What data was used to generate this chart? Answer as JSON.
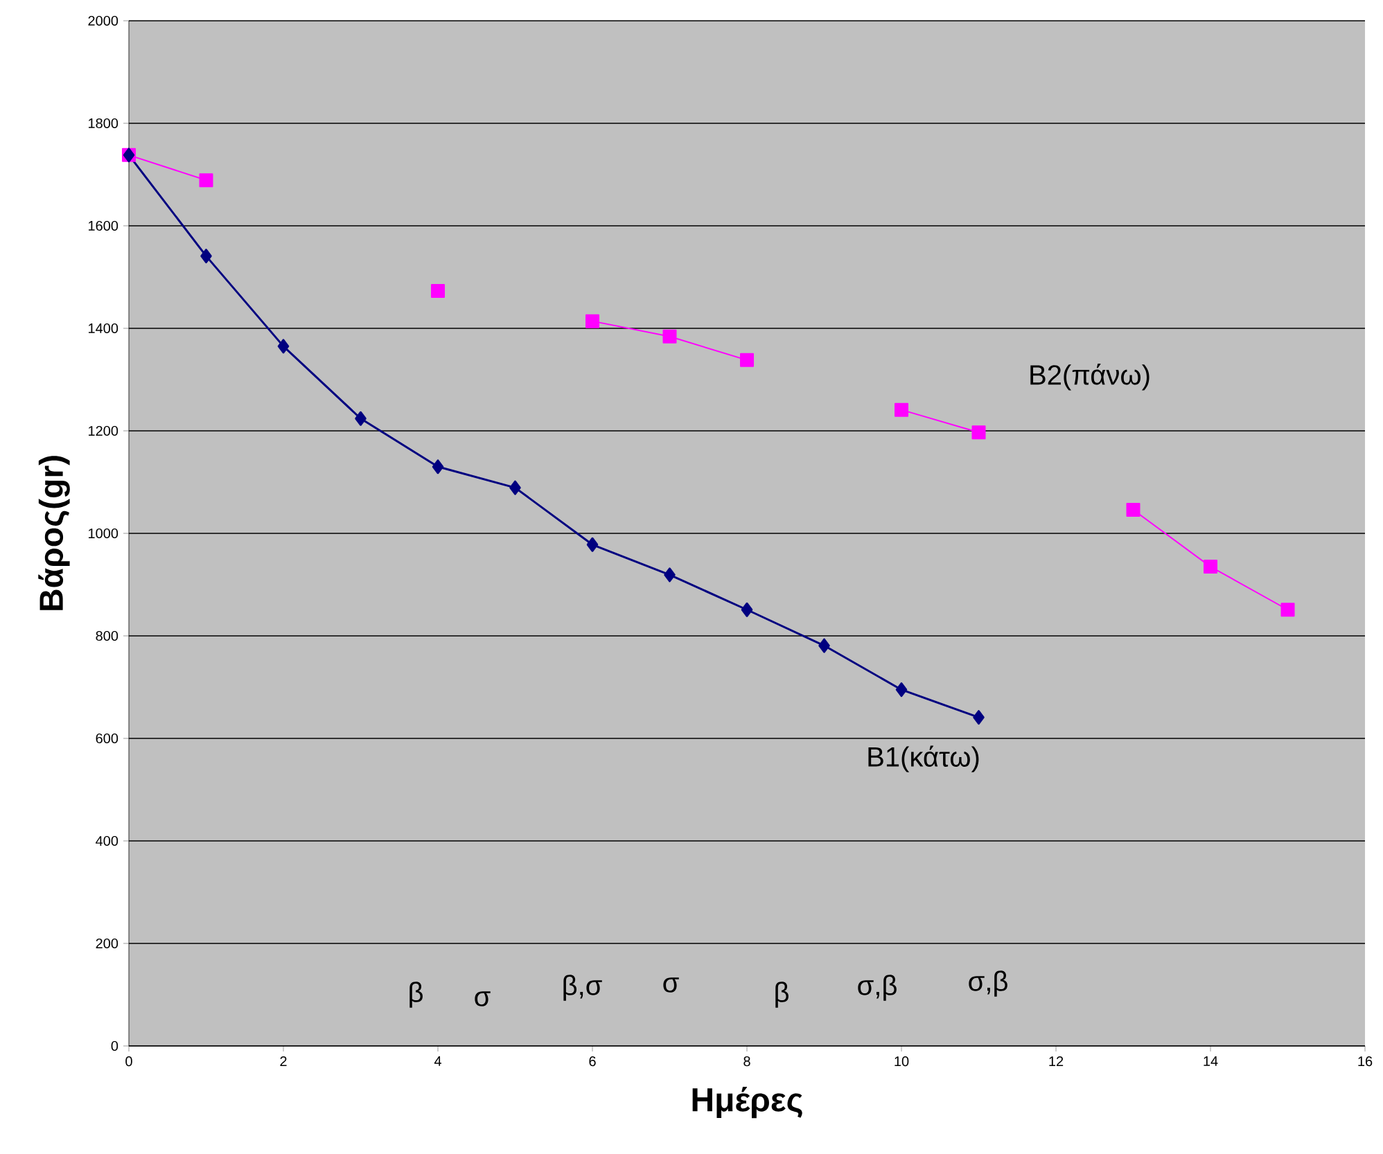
{
  "chart_data": {
    "type": "line",
    "xlabel": "Ημέρες",
    "ylabel": "Βάρος(gr)",
    "xlim": [
      0,
      16
    ],
    "ylim": [
      0,
      2000
    ],
    "xticks": [
      0,
      2,
      4,
      6,
      8,
      10,
      12,
      14,
      16
    ],
    "yticks": [
      0,
      200,
      400,
      600,
      800,
      1000,
      1200,
      1400,
      1600,
      1800,
      2000
    ],
    "grid": "y",
    "series": [
      {
        "name": "B1(κάτω)",
        "color": "#000080",
        "marker": "diamond",
        "x": [
          0,
          1,
          2,
          3,
          4,
          5,
          6,
          7,
          8,
          9,
          10,
          11
        ],
        "values": [
          1738,
          1541,
          1365,
          1224,
          1130,
          1089,
          978,
          919,
          851,
          781,
          695,
          641
        ]
      },
      {
        "name": "B2(πάνω)",
        "color": "#ff00ff",
        "marker": "square",
        "x": [
          0,
          1,
          2,
          3,
          4,
          5,
          6,
          7,
          8,
          9,
          10,
          11,
          12,
          13,
          14,
          15
        ],
        "values": [
          1738,
          1689,
          null,
          null,
          1473,
          null,
          1414,
          1384,
          1338,
          null,
          1241,
          1197,
          null,
          1046,
          935,
          851
        ]
      }
    ],
    "annotations": [
      "β",
      "σ",
      "β,σ",
      "σ",
      "β",
      "σ,β",
      "σ,β"
    ]
  }
}
